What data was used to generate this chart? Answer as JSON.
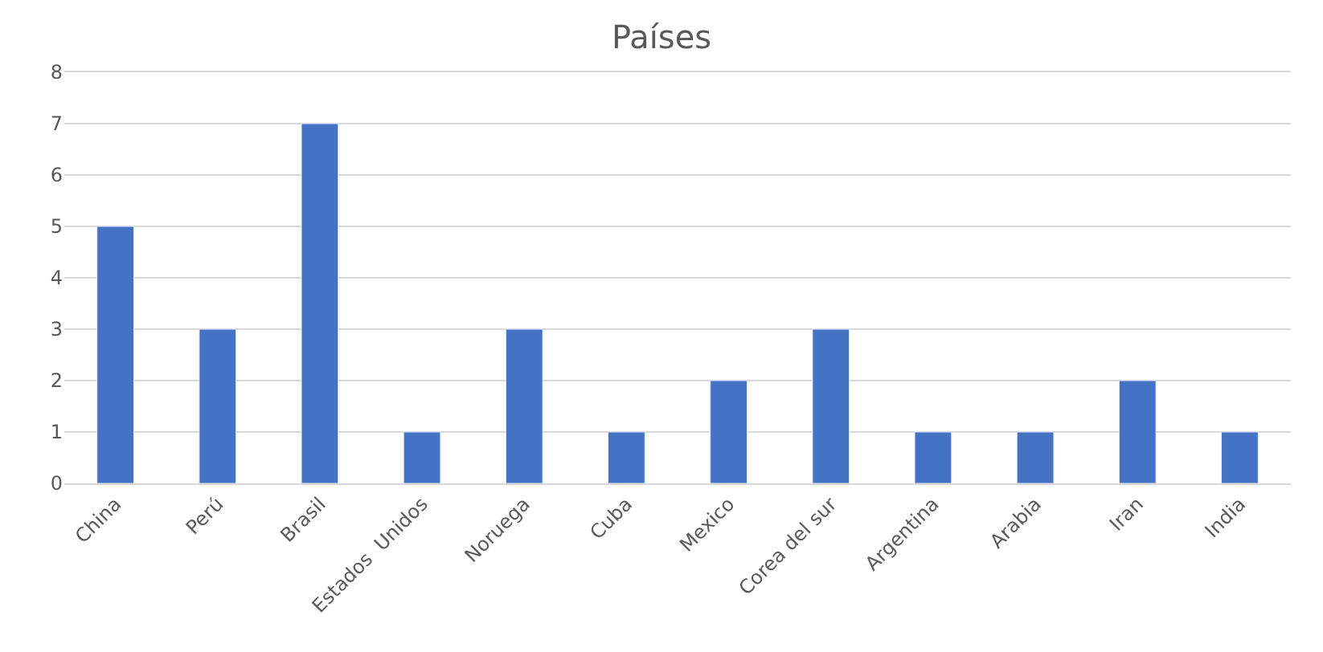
{
  "chart_data": {
    "type": "bar",
    "title": "Países",
    "categories": [
      "China",
      "Perú",
      "Brasil",
      "Estados  Unidos",
      "Noruega",
      "Cuba",
      "Mexico",
      "Corea del sur",
      "Argentina",
      "Arabia",
      "Iran",
      "India"
    ],
    "values": [
      5,
      3,
      7,
      1,
      3,
      1,
      2,
      3,
      1,
      1,
      2,
      1
    ],
    "color": "#4472c4",
    "ylim": [
      0,
      8
    ],
    "yticks": [
      0,
      1,
      2,
      3,
      4,
      5,
      6,
      7,
      8
    ],
    "grid": "y"
  }
}
